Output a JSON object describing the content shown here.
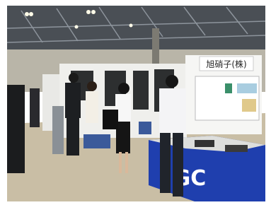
{
  "scene": {
    "sign": "旭硝子(株)",
    "table_logo": "GC"
  }
}
